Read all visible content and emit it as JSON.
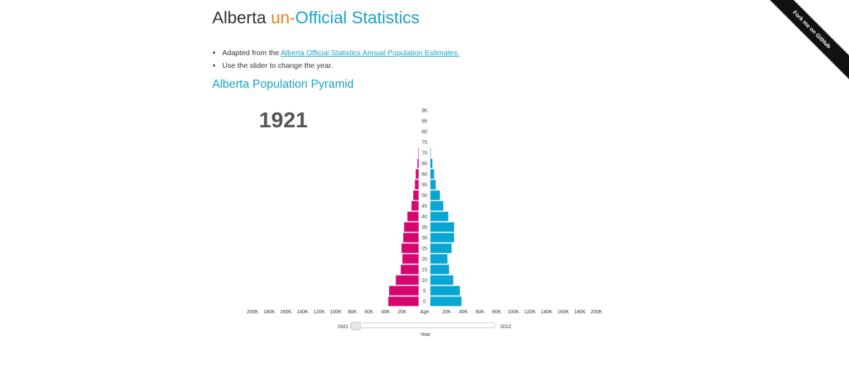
{
  "header": {
    "title_prefix": "Alberta ",
    "title_un": "un-",
    "title_rest": "Official Statistics"
  },
  "info": {
    "line1_prefix": "Adapted from the ",
    "line1_link": "Alberta Official Statistics Annual Population Estimates.",
    "line2": "Use the slider to change the year."
  },
  "section": {
    "title": "Alberta Population Pyramid"
  },
  "year": {
    "current": "1921"
  },
  "slider": {
    "min_label": "1921",
    "max_label": "2012",
    "axis_label": "Year",
    "value": 0
  },
  "ribbon": {
    "label": "Fork me on GitHub"
  },
  "colors": {
    "female": "#d6066e",
    "male": "#09a5d3",
    "accent_orange": "#f47b20",
    "accent_blue": "#16a4c9"
  },
  "chart_data": {
    "type": "bar",
    "orientation": "horizontal-pyramid",
    "age_label": "Age",
    "age_ticks": [
      "90",
      "85",
      "80",
      "75",
      "70",
      "65",
      "60",
      "55",
      "50",
      "45",
      "40",
      "35",
      "30",
      "25",
      "20",
      "15",
      "10",
      "5",
      "0"
    ],
    "x_ticks_left": [
      "200K",
      "180K",
      "160K",
      "140K",
      "120K",
      "100K",
      "80K",
      "60K",
      "40K",
      "20K"
    ],
    "x_ticks_right": [
      "20K",
      "40K",
      "60K",
      "80K",
      "100K",
      "120K",
      "140K",
      "160K",
      "180K",
      "200K"
    ],
    "xlim": [
      0,
      200000
    ],
    "ages": [
      0,
      5,
      10,
      15,
      20,
      25,
      30,
      35,
      40,
      45,
      50,
      55,
      60,
      65,
      70
    ],
    "series": [
      {
        "side": "left",
        "values": [
          37000,
          36000,
          28000,
          22000,
          20000,
          21000,
          19000,
          18000,
          14000,
          9000,
          7000,
          5000,
          4000,
          2000,
          1000
        ]
      },
      {
        "side": "right",
        "values": [
          38000,
          36000,
          28000,
          23000,
          21000,
          26000,
          29000,
          29000,
          22000,
          16000,
          12000,
          7000,
          5000,
          3000,
          1000
        ]
      }
    ]
  }
}
